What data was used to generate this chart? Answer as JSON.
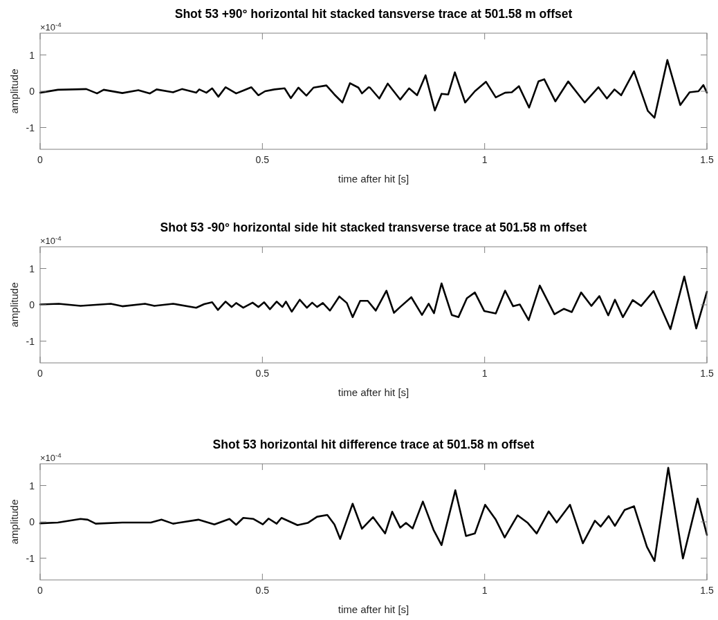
{
  "chart_data": [
    {
      "type": "line",
      "title": "Shot 53 +90° horizontal hit stacked tansverse trace at 501.58 m offset",
      "xlabel": "time after hit [s]",
      "ylabel": "amplitude",
      "annotations": [
        "×10$^{-4}$"
      ],
      "x": [
        0,
        0.04,
        0.104,
        0.128,
        0.143,
        0.185,
        0.221,
        0.247,
        0.262,
        0.299,
        0.319,
        0.351,
        0.358,
        0.374,
        0.387,
        0.401,
        0.417,
        0.441,
        0.457,
        0.475,
        0.491,
        0.506,
        0.527,
        0.55,
        0.564,
        0.581,
        0.599,
        0.615,
        0.644,
        0.662,
        0.68,
        0.697,
        0.716,
        0.724,
        0.739,
        0.742,
        0.763,
        0.782,
        0.81,
        0.83,
        0.848,
        0.867,
        0.888,
        0.903,
        0.918,
        0.933,
        0.956,
        0.978,
        1.003,
        1.025,
        1.046,
        1.061,
        1.077,
        1.1,
        1.121,
        1.134,
        1.159,
        1.188,
        1.225,
        1.256,
        1.275,
        1.292,
        1.307,
        1.336,
        1.367,
        1.382,
        1.411,
        1.44,
        1.461,
        1.481,
        1.492,
        1.5
      ],
      "series": [
        {
          "color": "#000000",
          "values": [
            -0.04,
            0.04,
            0.06,
            -0.06,
            0.04,
            -0.05,
            0.03,
            -0.06,
            0.05,
            -0.03,
            0.06,
            -0.04,
            0.05,
            -0.04,
            0.08,
            -0.15,
            0.11,
            -0.06,
            0.02,
            0.11,
            -0.11,
            0,
            0.05,
            0.08,
            -0.19,
            0.1,
            -0.12,
            0.1,
            0.16,
            -0.09,
            -0.31,
            0.22,
            0.1,
            -0.06,
            0.11,
            0.1,
            -0.2,
            0.21,
            -0.23,
            0.08,
            -0.11,
            0.44,
            -0.53,
            -0.07,
            -0.09,
            0.52,
            -0.31,
            0,
            0.26,
            -0.17,
            -0.04,
            -0.03,
            0.14,
            -0.45,
            0.27,
            0.33,
            -0.28,
            0.27,
            -0.31,
            0.11,
            -0.2,
            0.05,
            -0.11,
            0.55,
            -0.54,
            -0.73,
            0.86,
            -0.38,
            -0.03,
            0,
            0.17,
            -0.04
          ]
        }
      ],
      "xlim": [
        0,
        1.5
      ],
      "ylim": [
        -1.6,
        1.6
      ],
      "xticks": [
        0,
        0.5,
        1,
        1.5
      ],
      "yticks": [
        -1,
        0,
        1
      ]
    },
    {
      "type": "line",
      "title": "Shot 53 -90° horizontal side hit stacked transverse trace at 501.58 m offset",
      "xlabel": "time after hit [s]",
      "ylabel": "amplitude",
      "annotations": [
        "×10$^{-4}$"
      ],
      "x": [
        0,
        0.042,
        0.091,
        0.159,
        0.185,
        0.236,
        0.257,
        0.299,
        0.351,
        0.369,
        0.387,
        0.4,
        0.417,
        0.431,
        0.441,
        0.457,
        0.478,
        0.491,
        0.504,
        0.517,
        0.532,
        0.545,
        0.553,
        0.566,
        0.584,
        0.6,
        0.612,
        0.623,
        0.636,
        0.652,
        0.673,
        0.69,
        0.703,
        0.72,
        0.737,
        0.755,
        0.779,
        0.796,
        0.81,
        0.835,
        0.859,
        0.874,
        0.886,
        0.903,
        0.926,
        0.941,
        0.96,
        0.978,
        0.999,
        1.025,
        1.046,
        1.064,
        1.079,
        1.099,
        1.124,
        1.157,
        1.178,
        1.196,
        1.217,
        1.24,
        1.258,
        1.278,
        1.293,
        1.311,
        1.333,
        1.352,
        1.38,
        1.418,
        1.449,
        1.476,
        1.5
      ],
      "series": [
        {
          "color": "#000000",
          "values": [
            0.01,
            0.03,
            -0.03,
            0.03,
            -0.04,
            0.03,
            -0.03,
            0.03,
            -0.08,
            0.02,
            0.07,
            -0.14,
            0.09,
            -0.06,
            0.05,
            -0.08,
            0.06,
            -0.06,
            0.07,
            -0.12,
            0.09,
            -0.06,
            0.09,
            -0.19,
            0.14,
            -0.08,
            0.06,
            -0.06,
            0.05,
            -0.16,
            0.23,
            0.05,
            -0.34,
            0.11,
            0.11,
            -0.16,
            0.39,
            -0.22,
            -0.06,
            0.21,
            -0.28,
            0.03,
            -0.23,
            0.59,
            -0.28,
            -0.34,
            0.18,
            0.34,
            -0.17,
            -0.24,
            0.39,
            -0.04,
            0.01,
            -0.42,
            0.53,
            -0.26,
            -0.11,
            -0.2,
            0.34,
            -0.03,
            0.24,
            -0.29,
            0.14,
            -0.34,
            0.13,
            -0.03,
            0.38,
            -0.67,
            0.78,
            -0.65,
            0.36
          ]
        }
      ],
      "xlim": [
        0,
        1.5
      ],
      "ylim": [
        -1.6,
        1.6
      ],
      "xticks": [
        0,
        0.5,
        1,
        1.5
      ],
      "yticks": [
        -1,
        0,
        1
      ]
    },
    {
      "type": "line",
      "title": "Shot 53 horizontal hit difference trace at 501.58 m offset",
      "xlabel": "time after hit [s]",
      "ylabel": "amplitude",
      "annotations": [
        "×10$^{-4}$"
      ],
      "x": [
        0,
        0.04,
        0.091,
        0.107,
        0.125,
        0.185,
        0.249,
        0.273,
        0.299,
        0.356,
        0.392,
        0.426,
        0.441,
        0.457,
        0.48,
        0.501,
        0.514,
        0.532,
        0.543,
        0.579,
        0.602,
        0.623,
        0.646,
        0.662,
        0.675,
        0.703,
        0.724,
        0.749,
        0.776,
        0.792,
        0.81,
        0.823,
        0.838,
        0.861,
        0.885,
        0.903,
        0.934,
        0.958,
        0.978,
        1.001,
        1.025,
        1.045,
        1.074,
        1.097,
        1.117,
        1.144,
        1.162,
        1.192,
        1.221,
        1.248,
        1.261,
        1.279,
        1.293,
        1.315,
        1.336,
        1.365,
        1.382,
        1.413,
        1.446,
        1.479,
        1.5
      ],
      "series": [
        {
          "color": "#000000",
          "values": [
            -0.04,
            -0.02,
            0.08,
            0.06,
            -0.05,
            -0.02,
            -0.02,
            0.06,
            -0.05,
            0.06,
            -0.07,
            0.08,
            -0.08,
            0.11,
            0.08,
            -0.07,
            0.09,
            -0.05,
            0.11,
            -0.09,
            -0.03,
            0.14,
            0.19,
            -0.07,
            -0.47,
            0.5,
            -0.19,
            0.13,
            -0.32,
            0.28,
            -0.16,
            -0.03,
            -0.18,
            0.56,
            -0.22,
            -0.64,
            0.87,
            -0.39,
            -0.32,
            0.47,
            0.06,
            -0.43,
            0.18,
            -0.03,
            -0.32,
            0.29,
            -0.02,
            0.47,
            -0.59,
            0.03,
            -0.13,
            0.16,
            -0.11,
            0.33,
            0.43,
            -0.69,
            -1.08,
            1.49,
            -1.01,
            0.64,
            -0.36
          ]
        }
      ],
      "xlim": [
        0,
        1.5
      ],
      "ylim": [
        -1.6,
        1.6
      ],
      "xticks": [
        0,
        0.5,
        1,
        1.5
      ],
      "yticks": [
        -1,
        0,
        1
      ]
    }
  ]
}
